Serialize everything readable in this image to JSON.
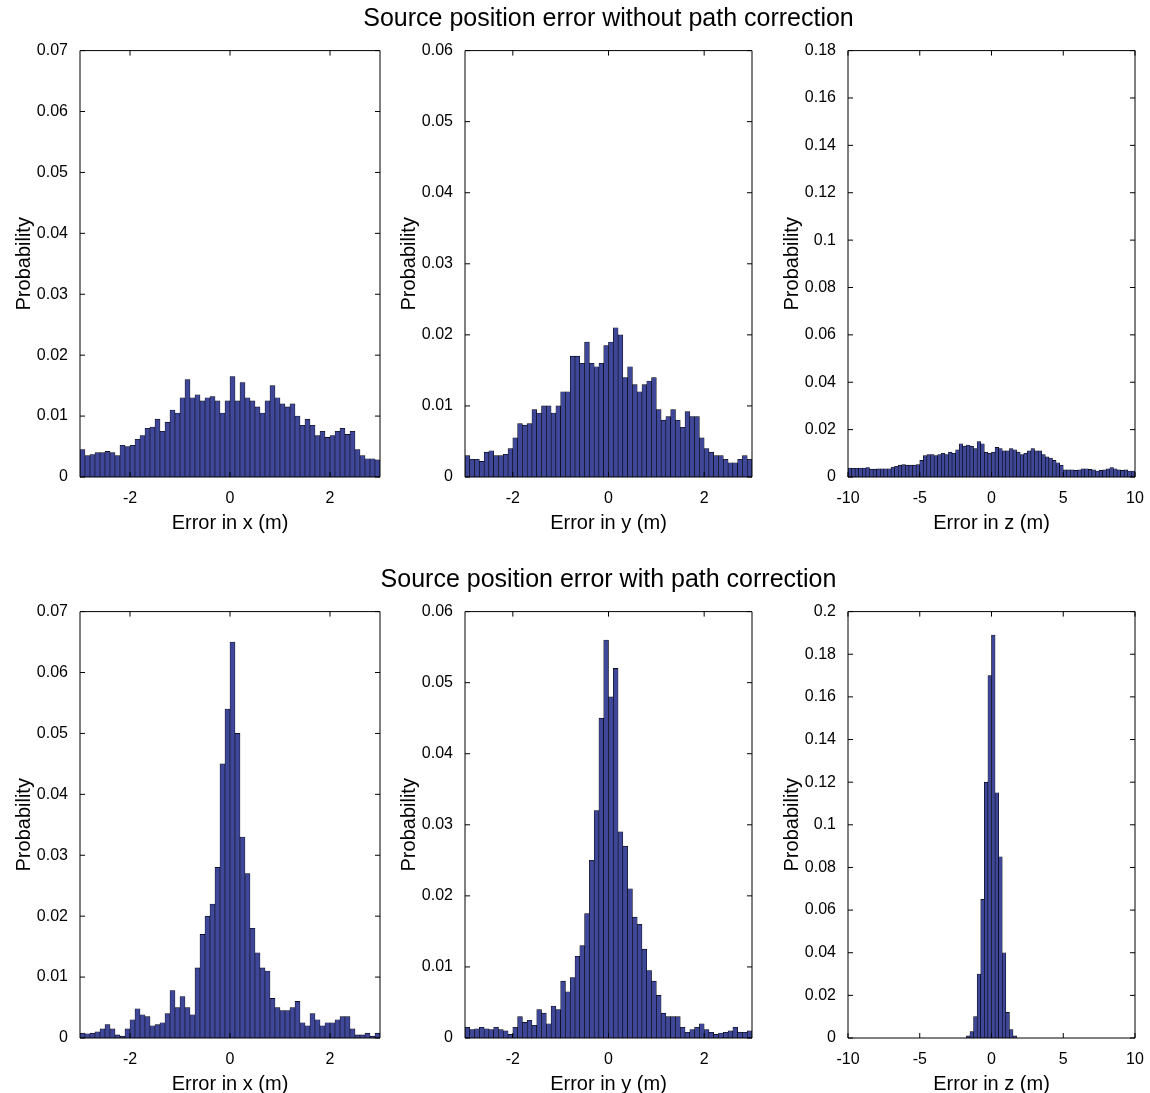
{
  "chart_data": [
    {
      "type": "histogram",
      "xlabel": "Error in x (m)",
      "ylabel": "Probability",
      "color": "#3f4799",
      "xlim": [
        -3,
        3
      ],
      "xticks": [
        -2,
        0,
        2
      ],
      "ylim": [
        0,
        0.07
      ],
      "yticks": [
        0,
        0.01,
        0.02,
        0.03,
        0.04,
        0.05,
        0.06,
        0.07
      ],
      "bins": [
        -3,
        -2.9,
        -2.8,
        -2.7,
        -2.6,
        -2.5,
        -2.4,
        -2.3,
        -2.2,
        -2.1,
        -2,
        -1.9,
        -1.8,
        -1.7,
        -1.6,
        -1.5,
        -1.4,
        -1.3,
        -1.2,
        -1.1,
        -1,
        -0.9,
        -0.8,
        -0.7,
        -0.6,
        -0.5,
        -0.4,
        -0.3,
        -0.2,
        -0.1,
        0,
        0.1,
        0.2,
        0.3,
        0.4,
        0.5,
        0.6,
        0.7,
        0.8,
        0.9,
        1,
        1.1,
        1.2,
        1.3,
        1.4,
        1.5,
        1.6,
        1.7,
        1.8,
        1.9,
        2,
        2.1,
        2.2,
        2.3,
        2.4,
        2.5,
        2.6,
        2.7,
        2.8,
        2.9,
        3
      ],
      "values": [
        0.0045,
        0.0035,
        0.0037,
        0.004,
        0.004,
        0.0042,
        0.004,
        0.0035,
        0.0052,
        0.005,
        0.0052,
        0.0062,
        0.0068,
        0.008,
        0.0082,
        0.0095,
        0.0075,
        0.009,
        0.011,
        0.0105,
        0.013,
        0.016,
        0.013,
        0.0135,
        0.0125,
        0.013,
        0.0132,
        0.0125,
        0.0105,
        0.0125,
        0.0165,
        0.0125,
        0.0155,
        0.013,
        0.0125,
        0.0115,
        0.0105,
        0.0125,
        0.015,
        0.013,
        0.012,
        0.0115,
        0.012,
        0.01,
        0.0085,
        0.0095,
        0.0085,
        0.0068,
        0.0075,
        0.0065,
        0.0068,
        0.0075,
        0.008,
        0.007,
        0.0075,
        0.0045,
        0.0035,
        0.003,
        0.003,
        0.0028
      ]
    },
    {
      "type": "histogram",
      "title": "Source position error without path correction",
      "xlabel": "Error in y (m)",
      "ylabel": "Probability",
      "color": "#3f4799",
      "xlim": [
        -3,
        3
      ],
      "xticks": [
        -2,
        0,
        2
      ],
      "ylim": [
        0,
        0.06
      ],
      "yticks": [
        0,
        0.01,
        0.02,
        0.03,
        0.04,
        0.05,
        0.06
      ],
      "bins": [
        -3,
        -2.9,
        -2.8,
        -2.7,
        -2.6,
        -2.5,
        -2.4,
        -2.3,
        -2.2,
        -2.1,
        -2,
        -1.9,
        -1.8,
        -1.7,
        -1.6,
        -1.5,
        -1.4,
        -1.3,
        -1.2,
        -1.1,
        -1,
        -0.9,
        -0.8,
        -0.7,
        -0.6,
        -0.5,
        -0.4,
        -0.3,
        -0.2,
        -0.1,
        0,
        0.1,
        0.2,
        0.3,
        0.4,
        0.5,
        0.6,
        0.7,
        0.8,
        0.9,
        1,
        1.1,
        1.2,
        1.3,
        1.4,
        1.5,
        1.6,
        1.7,
        1.8,
        1.9,
        2,
        2.1,
        2.2,
        2.3,
        2.4,
        2.5,
        2.6,
        2.7,
        2.8,
        2.9,
        3
      ],
      "values": [
        0.003,
        0.0025,
        0.0025,
        0.0022,
        0.0035,
        0.0037,
        0.003,
        0.003,
        0.0032,
        0.004,
        0.0055,
        0.0075,
        0.0073,
        0.0075,
        0.0095,
        0.009,
        0.01,
        0.01,
        0.009,
        0.01,
        0.012,
        0.012,
        0.017,
        0.017,
        0.016,
        0.019,
        0.016,
        0.0155,
        0.016,
        0.0185,
        0.019,
        0.021,
        0.02,
        0.014,
        0.0155,
        0.013,
        0.012,
        0.013,
        0.0135,
        0.014,
        0.0095,
        0.008,
        0.0085,
        0.0095,
        0.008,
        0.007,
        0.0092,
        0.0085,
        0.0085,
        0.0055,
        0.004,
        0.0035,
        0.003,
        0.003,
        0.0025,
        0.002,
        0.002,
        0.0025,
        0.003,
        0.0025
      ]
    },
    {
      "type": "histogram",
      "xlabel": "Error in z (m)",
      "ylabel": "Probability",
      "color": "#3f4799",
      "xlim": [
        -10,
        10
      ],
      "xticks": [
        -10,
        -5,
        0,
        5,
        10
      ],
      "ylim": [
        0,
        0.18
      ],
      "yticks": [
        0,
        0.02,
        0.04,
        0.06,
        0.08,
        0.1,
        0.12,
        0.14,
        0.16,
        0.18
      ],
      "bins": [
        -10,
        -9.75,
        -9.5,
        -9.25,
        -9,
        -8.75,
        -8.5,
        -8.25,
        -8,
        -7.75,
        -7.5,
        -7.25,
        -7,
        -6.75,
        -6.5,
        -6.25,
        -6,
        -5.75,
        -5.5,
        -5.25,
        -5,
        -4.75,
        -4.5,
        -4.25,
        -4,
        -3.75,
        -3.5,
        -3.25,
        -3,
        -2.75,
        -2.5,
        -2.25,
        -2,
        -1.75,
        -1.5,
        -1.25,
        -1,
        -0.75,
        -0.5,
        -0.25,
        0,
        0.25,
        0.5,
        0.75,
        1,
        1.25,
        1.5,
        1.75,
        2,
        2.25,
        2.5,
        2.75,
        3,
        3.25,
        3.5,
        3.75,
        4,
        4.25,
        4.5,
        4.75,
        5,
        5.25,
        5.5,
        5.75,
        6,
        6.25,
        6.5,
        6.75,
        7,
        7.25,
        7.5,
        7.75,
        8,
        8.25,
        8.5,
        8.75,
        9,
        9.25,
        9.5,
        9.75,
        10
      ],
      "values": [
        0.0038,
        0.0037,
        0.0037,
        0.0038,
        0.0038,
        0.004,
        0.0033,
        0.0033,
        0.0034,
        0.0035,
        0.0035,
        0.0035,
        0.0042,
        0.0045,
        0.005,
        0.0052,
        0.005,
        0.005,
        0.005,
        0.0052,
        0.007,
        0.009,
        0.0095,
        0.0095,
        0.009,
        0.0095,
        0.01,
        0.0095,
        0.0105,
        0.01,
        0.0115,
        0.014,
        0.013,
        0.0135,
        0.013,
        0.012,
        0.015,
        0.014,
        0.0105,
        0.01,
        0.0105,
        0.0125,
        0.012,
        0.011,
        0.011,
        0.012,
        0.0115,
        0.0105,
        0.0095,
        0.01,
        0.011,
        0.012,
        0.011,
        0.011,
        0.0095,
        0.0085,
        0.008,
        0.007,
        0.006,
        0.005,
        0.003,
        0.003,
        0.003,
        0.0028,
        0.003,
        0.0035,
        0.0035,
        0.0032,
        0.003,
        0.0025,
        0.0028,
        0.003,
        0.0035,
        0.004,
        0.0035,
        0.003,
        0.0028,
        0.003,
        0.0025,
        0.0025
      ]
    },
    {
      "type": "histogram",
      "xlabel": "Error in x (m)",
      "ylabel": "Probability",
      "color": "#3f4799",
      "xlim": [
        -3,
        3
      ],
      "xticks": [
        -2,
        0,
        2
      ],
      "ylim": [
        0,
        0.07
      ],
      "yticks": [
        0,
        0.01,
        0.02,
        0.03,
        0.04,
        0.05,
        0.06,
        0.07
      ],
      "bins": [
        -3,
        -2.9,
        -2.8,
        -2.7,
        -2.6,
        -2.5,
        -2.4,
        -2.3,
        -2.2,
        -2.1,
        -2,
        -1.9,
        -1.8,
        -1.7,
        -1.6,
        -1.5,
        -1.4,
        -1.3,
        -1.2,
        -1.1,
        -1,
        -0.9,
        -0.8,
        -0.7,
        -0.6,
        -0.5,
        -0.4,
        -0.3,
        -0.2,
        -0.1,
        0,
        0.1,
        0.2,
        0.3,
        0.4,
        0.5,
        0.6,
        0.7,
        0.8,
        0.9,
        1,
        1.1,
        1.2,
        1.3,
        1.4,
        1.5,
        1.6,
        1.7,
        1.8,
        1.9,
        2,
        2.1,
        2.2,
        2.3,
        2.4,
        2.5,
        2.6,
        2.7,
        2.8,
        2.9,
        3
      ],
      "values": [
        0.0008,
        0.0007,
        0.0008,
        0.001,
        0.0015,
        0.0022,
        0.0015,
        0.0005,
        0.0003,
        0.0015,
        0.003,
        0.0048,
        0.0038,
        0.0035,
        0.002,
        0.0022,
        0.0025,
        0.004,
        0.0078,
        0.005,
        0.0068,
        0.005,
        0.0038,
        0.0115,
        0.017,
        0.02,
        0.022,
        0.028,
        0.045,
        0.054,
        0.065,
        0.05,
        0.033,
        0.027,
        0.018,
        0.014,
        0.0115,
        0.011,
        0.0065,
        0.005,
        0.0045,
        0.0045,
        0.005,
        0.006,
        0.0025,
        0.002,
        0.004,
        0.003,
        0.002,
        0.0025,
        0.0025,
        0.003,
        0.0035,
        0.0035,
        0.0015,
        0.0005,
        0.0005,
        0.0008,
        0.0003,
        0.0008
      ]
    },
    {
      "type": "histogram",
      "title": "Source position error with path correction",
      "xlabel": "Error in y (m)",
      "ylabel": "Probability",
      "color": "#3f4799",
      "xlim": [
        -3,
        3
      ],
      "xticks": [
        -2,
        0,
        2
      ],
      "ylim": [
        0,
        0.06
      ],
      "yticks": [
        0,
        0.01,
        0.02,
        0.03,
        0.04,
        0.05,
        0.06
      ],
      "bins": [
        -3,
        -2.9,
        -2.8,
        -2.7,
        -2.6,
        -2.5,
        -2.4,
        -2.3,
        -2.2,
        -2.1,
        -2,
        -1.9,
        -1.8,
        -1.7,
        -1.6,
        -1.5,
        -1.4,
        -1.3,
        -1.2,
        -1.1,
        -1,
        -0.9,
        -0.8,
        -0.7,
        -0.6,
        -0.5,
        -0.4,
        -0.3,
        -0.2,
        -0.1,
        0,
        0.1,
        0.2,
        0.3,
        0.4,
        0.5,
        0.6,
        0.7,
        0.8,
        0.9,
        1,
        1.1,
        1.2,
        1.3,
        1.4,
        1.5,
        1.6,
        1.7,
        1.8,
        1.9,
        2,
        2.1,
        2.2,
        2.3,
        2.4,
        2.5,
        2.6,
        2.7,
        2.8,
        2.9,
        3
      ],
      "values": [
        0.0015,
        0.0012,
        0.0013,
        0.0015,
        0.0013,
        0.0012,
        0.0015,
        0.0012,
        0.001,
        0.0005,
        0.0015,
        0.003,
        0.0022,
        0.0025,
        0.0018,
        0.004,
        0.0035,
        0.002,
        0.0045,
        0.004,
        0.008,
        0.0065,
        0.0085,
        0.0115,
        0.013,
        0.0175,
        0.025,
        0.032,
        0.045,
        0.056,
        0.048,
        0.052,
        0.029,
        0.027,
        0.021,
        0.017,
        0.016,
        0.0125,
        0.0095,
        0.008,
        0.006,
        0.0035,
        0.003,
        0.003,
        0.003,
        0.0015,
        0.0008,
        0.0012,
        0.0015,
        0.002,
        0.0012,
        0.0008,
        0.0005,
        0.0007,
        0.0008,
        0.001,
        0.0015,
        0.0008,
        0.0008,
        0.001
      ]
    },
    {
      "type": "histogram",
      "xlabel": "Error in z (m)",
      "ylabel": "Probability",
      "color": "#3f4799",
      "xlim": [
        -10,
        10
      ],
      "xticks": [
        -10,
        -5,
        0,
        5,
        10
      ],
      "ylim": [
        0,
        0.2
      ],
      "yticks": [
        0,
        0.02,
        0.04,
        0.06,
        0.08,
        0.1,
        0.12,
        0.14,
        0.16,
        0.18,
        0.2
      ],
      "bins": [
        -10,
        -9.75,
        -9.5,
        -9.25,
        -9,
        -8.75,
        -8.5,
        -8.25,
        -8,
        -7.75,
        -7.5,
        -7.25,
        -7,
        -6.75,
        -6.5,
        -6.25,
        -6,
        -5.75,
        -5.5,
        -5.25,
        -5,
        -4.75,
        -4.5,
        -4.25,
        -4,
        -3.75,
        -3.5,
        -3.25,
        -3,
        -2.75,
        -2.5,
        -2.25,
        -2,
        -1.75,
        -1.5,
        -1.25,
        -1,
        -0.75,
        -0.5,
        -0.25,
        0,
        0.25,
        0.5,
        0.75,
        1,
        1.25,
        1.5,
        1.75,
        2,
        2.25,
        2.5,
        2.75,
        3,
        3.25,
        3.5,
        3.75,
        4,
        4.25,
        4.5,
        4.75,
        5,
        5.25,
        5.5,
        5.75,
        6,
        6.25,
        6.5,
        6.75,
        7,
        7.25,
        7.5,
        7.75,
        8,
        8.25,
        8.5,
        8.75,
        9,
        9.25,
        9.5,
        9.75,
        10
      ],
      "values": [
        0,
        0,
        0,
        0,
        0,
        0,
        0,
        0,
        0,
        0,
        0,
        0,
        0,
        0,
        0,
        0,
        0,
        0,
        0,
        0,
        0,
        0,
        0,
        0,
        0,
        0,
        0,
        0,
        0,
        0,
        0,
        0,
        0,
        0.001,
        0.003,
        0.01,
        0.03,
        0.065,
        0.12,
        0.17,
        0.189,
        0.115,
        0.085,
        0.04,
        0.012,
        0.004,
        0.001,
        0,
        0,
        0,
        0,
        0,
        0,
        0,
        0,
        0,
        0,
        0,
        0,
        0,
        0,
        0,
        0,
        0,
        0,
        0,
        0,
        0,
        0,
        0,
        0,
        0,
        0,
        0,
        0,
        0,
        0,
        0,
        0,
        0
      ]
    }
  ]
}
